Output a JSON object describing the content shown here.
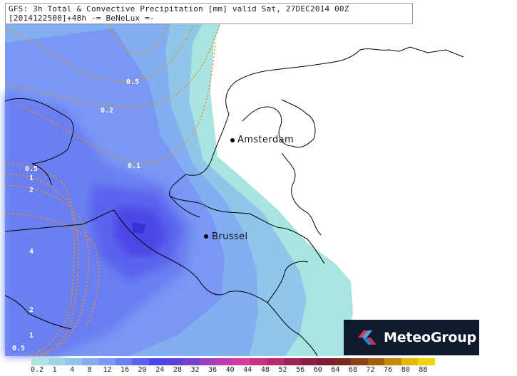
{
  "header": {
    "line1": "GFS: 3h Total & Convective Precipitation [mm] valid Sat, 27DEC2014 00Z",
    "line2": "[2014122500]+48h  -= BeNeLux =-"
  },
  "cities": [
    {
      "name": "Amsterdam"
    },
    {
      "name": "Brussel"
    }
  ],
  "contour_labels": [
    "0.5",
    "0.2",
    "0.1",
    "0.5",
    "1",
    "2",
    "4",
    "2",
    "1",
    "0.5"
  ],
  "logo": {
    "text": "MeteoGroup"
  },
  "legend": {
    "labels": [
      "0.2",
      "1",
      "4",
      "8",
      "12",
      "16",
      "20",
      "24",
      "28",
      "32",
      "36",
      "40",
      "44",
      "48",
      "52",
      "56",
      "60",
      "64",
      "68",
      "72",
      "76",
      "80",
      "88"
    ],
    "colors": [
      "#a8e4e0",
      "#9ad8e2",
      "#8fc6ea",
      "#82aef2",
      "#7898f4",
      "#6a7ff2",
      "#5a62ee",
      "#4b46e6",
      "#5c3fd8",
      "#7a3fcc",
      "#9c3fbe",
      "#bc3db2",
      "#d63a9a",
      "#c93283",
      "#b42c6d",
      "#9c2458",
      "#8a1f45",
      "#7b1e35",
      "#7a2a1e",
      "#8f4216",
      "#a85e10",
      "#c9860c",
      "#e6b60a",
      "#f2d40a"
    ]
  },
  "colors": {
    "contour": "#f08c28",
    "coast": "#000000"
  }
}
